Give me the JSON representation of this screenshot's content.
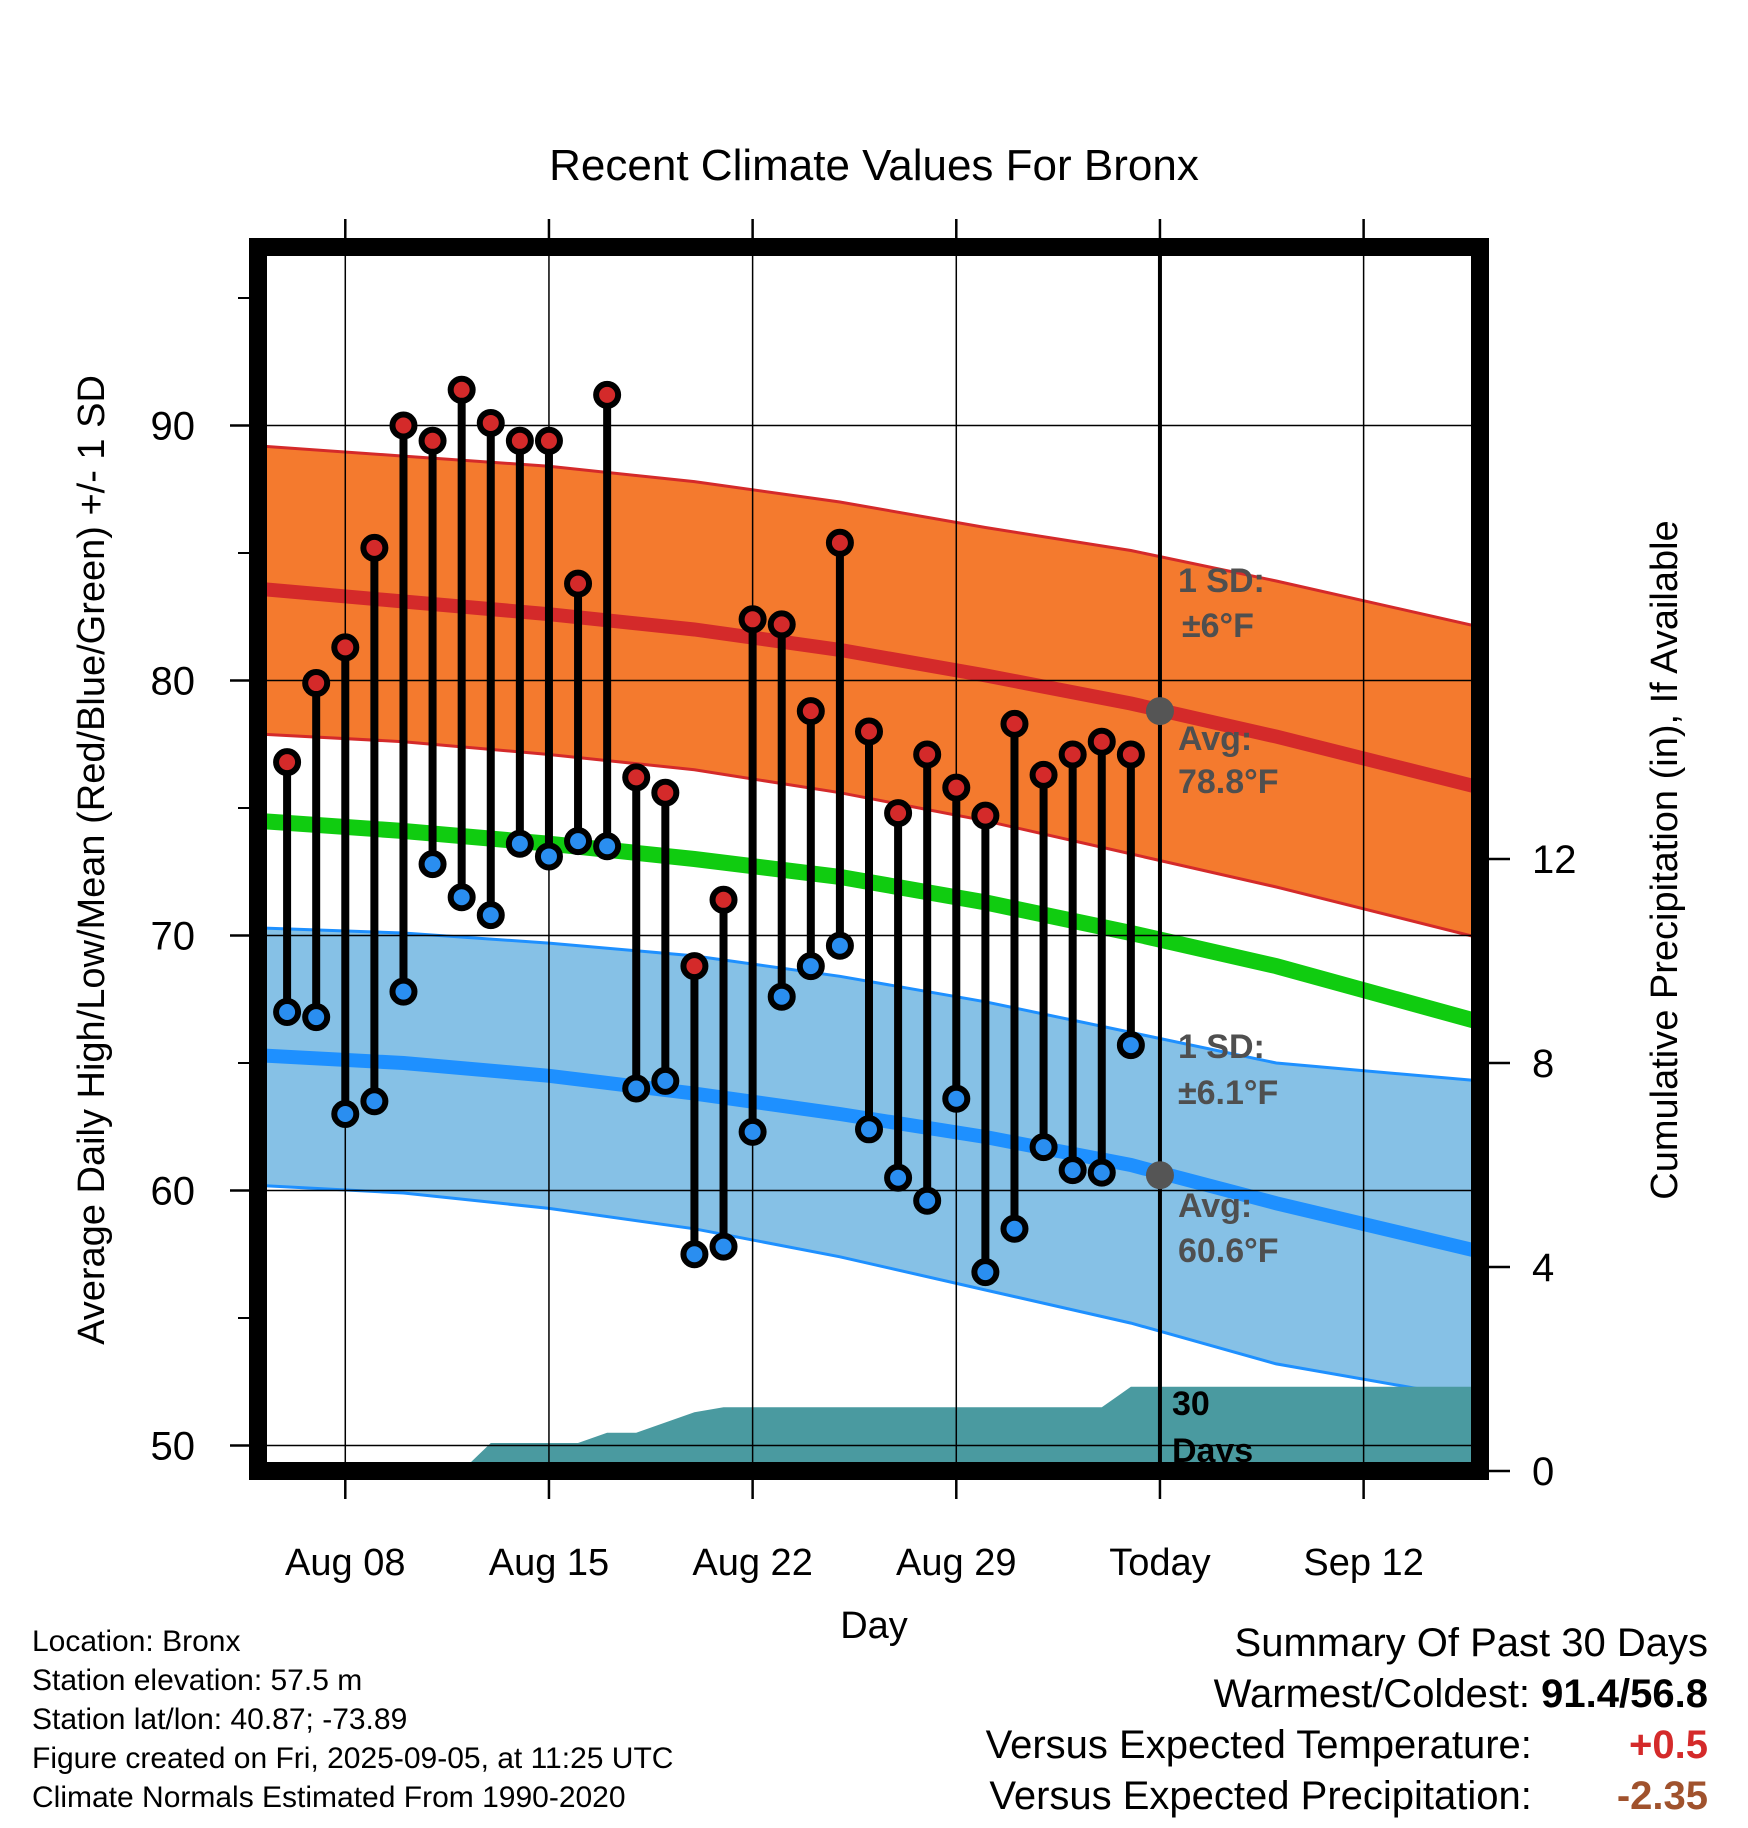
{
  "chart_data": {
    "type": "line",
    "title": "Recent Climate Values For Bronx",
    "xlabel": "Day",
    "ylabel": "Average Daily High/Low/Mean (Red/Blue/Green) +/- 1 SD",
    "y2label": "Cumulative Precipitation (in), If Available",
    "ylim": [
      49,
      97
    ],
    "y2lim": [
      0,
      24
    ],
    "yticks": [
      50,
      60,
      70,
      80,
      90
    ],
    "y2ticks": [
      0,
      4,
      8,
      12
    ],
    "x_day_range": [
      "2025-08-05",
      "2025-09-16"
    ],
    "xticks": [
      {
        "date": "2025-08-08",
        "label": "Aug 08"
      },
      {
        "date": "2025-08-15",
        "label": "Aug 15"
      },
      {
        "date": "2025-08-22",
        "label": "Aug 22"
      },
      {
        "date": "2025-08-29",
        "label": "Aug 29"
      },
      {
        "date": "2025-09-05",
        "label": "Today"
      },
      {
        "date": "2025-09-12",
        "label": "Sep 12"
      }
    ],
    "grid": true,
    "today": "2025-09-05",
    "days": [
      "2025-08-06",
      "2025-08-07",
      "2025-08-08",
      "2025-08-09",
      "2025-08-10",
      "2025-08-11",
      "2025-08-12",
      "2025-08-13",
      "2025-08-14",
      "2025-08-15",
      "2025-08-16",
      "2025-08-17",
      "2025-08-18",
      "2025-08-19",
      "2025-08-20",
      "2025-08-21",
      "2025-08-22",
      "2025-08-23",
      "2025-08-24",
      "2025-08-25",
      "2025-08-26",
      "2025-08-27",
      "2025-08-28",
      "2025-08-29",
      "2025-08-30",
      "2025-08-31",
      "2025-09-01",
      "2025-09-02",
      "2025-09-03",
      "2025-09-04"
    ],
    "highs": [
      76.8,
      79.9,
      81.3,
      85.2,
      90.0,
      89.4,
      91.4,
      90.1,
      89.4,
      89.4,
      83.8,
      91.2,
      76.2,
      75.6,
      68.8,
      71.4,
      82.4,
      82.2,
      78.8,
      85.4,
      78.0,
      74.8,
      77.1,
      75.8,
      74.7,
      78.3,
      76.3,
      77.1,
      77.6,
      77.1
    ],
    "lows": [
      67.0,
      66.8,
      63.0,
      63.5,
      67.8,
      72.8,
      71.5,
      70.8,
      73.6,
      73.1,
      73.7,
      73.5,
      64.0,
      64.3,
      57.5,
      57.8,
      62.3,
      67.6,
      68.8,
      69.6,
      62.4,
      60.5,
      59.6,
      63.6,
      56.8,
      58.5,
      61.7,
      60.8,
      60.7,
      65.7
    ],
    "normals": {
      "dates": [
        "2025-08-05",
        "2025-08-10",
        "2025-08-15",
        "2025-08-20",
        "2025-08-25",
        "2025-08-30",
        "2025-09-04",
        "2025-09-09",
        "2025-09-16"
      ],
      "high_mean": [
        83.6,
        83.1,
        82.6,
        82.0,
        81.2,
        80.2,
        79.1,
        77.8,
        75.8
      ],
      "high_upper": [
        89.2,
        88.8,
        88.4,
        87.8,
        87.0,
        86.0,
        85.1,
        83.9,
        82.1
      ],
      "high_lower": [
        77.9,
        77.6,
        77.1,
        76.5,
        75.6,
        74.5,
        73.2,
        71.9,
        69.9
      ],
      "mean": [
        74.5,
        74.1,
        73.6,
        73.0,
        72.3,
        71.3,
        70.1,
        68.8,
        66.6
      ],
      "low_mean": [
        65.3,
        65.0,
        64.5,
        63.8,
        63.0,
        62.1,
        61.0,
        59.5,
        57.6
      ],
      "low_upper": [
        70.3,
        70.1,
        69.7,
        69.2,
        68.4,
        67.4,
        66.2,
        65.0,
        64.3
      ],
      "low_lower": [
        60.2,
        59.9,
        59.3,
        58.5,
        57.4,
        56.1,
        54.8,
        53.2,
        51.8
      ]
    },
    "today_marks": {
      "high_avg": 78.8,
      "high_sd_label": "±6°F",
      "high_avg_label": "78.8°F",
      "low_avg": 60.6,
      "low_sd_label": "±6.1°F",
      "low_avg_label": "60.6°F",
      "sd_prefix": "1 SD:",
      "avg_prefix": "Avg:"
    },
    "precip_cumulative": {
      "dates": [
        "2025-08-05",
        "2025-08-12",
        "2025-08-13",
        "2025-08-16",
        "2025-08-17",
        "2025-08-18",
        "2025-08-19",
        "2025-08-20",
        "2025-08-21",
        "2025-08-22",
        "2025-08-27",
        "2025-09-03",
        "2025-09-04",
        "2025-09-16"
      ],
      "values": [
        0,
        0,
        0.55,
        0.55,
        0.75,
        0.75,
        0.95,
        1.15,
        1.25,
        1.25,
        1.25,
        1.25,
        1.65,
        1.65
      ]
    },
    "window_label_line1": "30",
    "window_label_line2": "Days",
    "colors": {
      "high_band": "#f47a2e",
      "high_line": "#d42a2a",
      "low_band": "#86c1e6",
      "low_line": "#1e90ff",
      "mean_line": "#10cc10",
      "precip": "#4a9aa0",
      "high_dot": "#d42a2a",
      "low_dot": "#2a8ef0",
      "annotation": "#4f4f4f"
    }
  },
  "info": {
    "location": "Location: Bronx",
    "elevation": "Station elevation: 57.5 m",
    "latlon": "Station lat/lon: 40.87; -73.89",
    "created": "Figure created on Fri, 2025-09-05, at 11:25 UTC",
    "normals": "Climate Normals Estimated From 1990-2020"
  },
  "summary": {
    "heading": "Summary Of Past 30 Days",
    "warmest_label": "Warmest/Coldest:",
    "warmest_value": "91.4/56.8",
    "temp_label": "Versus Expected Temperature:",
    "temp_value": "+0.5",
    "temp_color": "#d42a2a",
    "precip_label": "Versus Expected Precipitation:",
    "precip_value": "-2.35",
    "precip_color": "#a0522d"
  }
}
